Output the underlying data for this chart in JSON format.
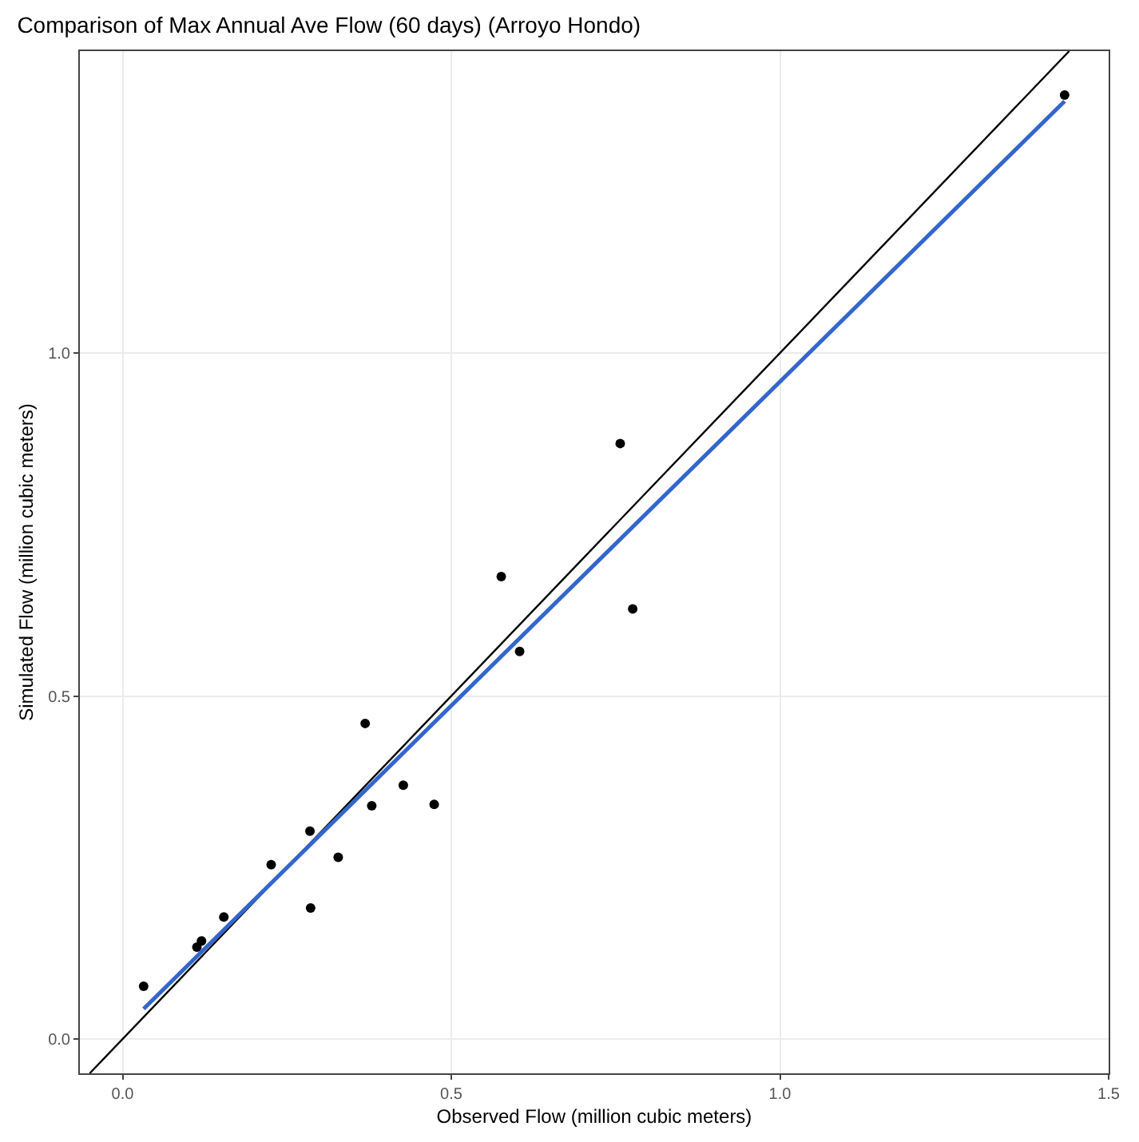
{
  "chart_data": {
    "type": "scatter",
    "title": "Comparison of Max Annual Ave Flow (60 days) (Arroyo Hondo)",
    "xlabel": "Observed Flow (million cubic meters)",
    "ylabel": "Simulated Flow (million cubic meters)",
    "xlim": [
      -0.065,
      1.5
    ],
    "ylim": [
      -0.05,
      1.44
    ],
    "xticks": [
      {
        "value": 0,
        "label": "0.0"
      },
      0.5,
      {
        "value": 1,
        "label": "1.0"
      },
      1.5
    ],
    "yticks": [
      {
        "value": 0,
        "label": "0.0"
      },
      0.5,
      {
        "value": 1,
        "label": "1.0"
      }
    ],
    "grid": true,
    "marker": "circle",
    "series": [
      {
        "color": "#000000",
        "x": [
          0.032,
          0.113,
          0.12,
          0.154,
          0.226,
          0.285,
          0.286,
          0.328,
          0.369,
          0.379,
          0.427,
          0.474,
          0.576,
          0.604,
          0.757,
          0.776,
          1.433
        ],
        "values": [
          0.077,
          0.134,
          0.143,
          0.178,
          0.254,
          0.303,
          0.191,
          0.265,
          0.46,
          0.34,
          0.37,
          0.342,
          0.674,
          0.565,
          0.868,
          0.627,
          1.376
        ]
      },
      {
        "type": "line",
        "color": "#000000",
        "marker": "none",
        "x": [
          -0.05,
          1.44
        ],
        "values": [
          -0.05,
          1.44
        ]
      },
      {
        "type": "line",
        "color": "#3366cc",
        "marker": "none",
        "x": [
          0.032,
          1.433
        ],
        "values": [
          0.044,
          1.367
        ]
      }
    ]
  }
}
